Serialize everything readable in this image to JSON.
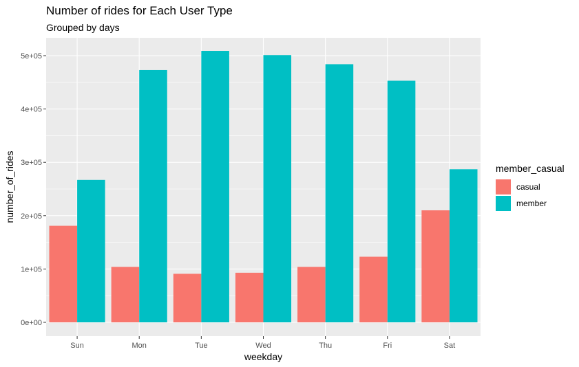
{
  "chart_data": {
    "type": "bar",
    "title": "Number of rides for Each User Type",
    "subtitle": "Grouped by days",
    "xlabel": "weekday",
    "ylabel": "number_of_rides",
    "categories": [
      "Sun",
      "Mon",
      "Tue",
      "Wed",
      "Thu",
      "Fri",
      "Sat"
    ],
    "series": [
      {
        "name": "casual",
        "color": "#F8766D",
        "values": [
          181000,
          104000,
          91000,
          93000,
          104000,
          123000,
          210000
        ]
      },
      {
        "name": "member",
        "color": "#00BFC4",
        "values": [
          267000,
          473000,
          509000,
          501000,
          484000,
          453000,
          287000
        ]
      }
    ],
    "ylim": [
      0,
      525000
    ],
    "yticks": [
      0,
      100000,
      200000,
      300000,
      400000,
      500000
    ],
    "ytick_labels": [
      "0e+00",
      "1e+05",
      "2e+05",
      "3e+05",
      "4e+05",
      "5e+05"
    ],
    "legend": {
      "title": "member_casual",
      "position": "right"
    },
    "grid": true,
    "panel_background": "#EBEBEB"
  }
}
